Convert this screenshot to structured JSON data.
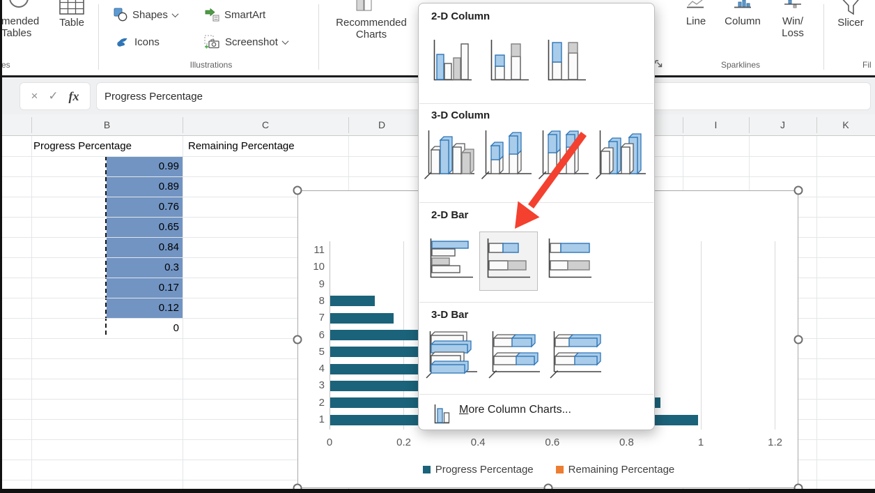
{
  "ribbon": {
    "tables": {
      "recommended_line1": "mended",
      "recommended_line2": "Tables",
      "table": "Table",
      "group_label_truncated": "es"
    },
    "illustrations": {
      "shapes": "Shapes",
      "icons": "Icons",
      "smartart": "SmartArt",
      "screenshot": "Screenshot",
      "group_label": "Illustrations"
    },
    "charts": {
      "recommended_line1": "Recommended",
      "recommended_line2": "Charts"
    },
    "sparklines": {
      "line": "Line",
      "column": "Column",
      "winloss_line1": "Win/",
      "winloss_line2": "Loss",
      "group_label": "Sparklines"
    },
    "filters": {
      "slicer": "Slicer",
      "group_label_truncated": "Fil"
    }
  },
  "formula_bar": {
    "cancel": "×",
    "enter": "✓",
    "fx": "fx",
    "value": "Progress Percentage"
  },
  "sheet": {
    "column_headers_left": [
      "B",
      "C",
      "D"
    ],
    "column_headers_right": [
      "I",
      "J",
      "K"
    ],
    "b1": "Progress Percentage",
    "c1": "Remaining Percentage",
    "b_values": [
      "0.99",
      "0.89",
      "0.76",
      "0.65",
      "0.84",
      "0.3",
      "0.17",
      "0.12",
      "0"
    ],
    "cell_fill_color": "#7194C3"
  },
  "dropdown": {
    "sections": [
      {
        "title": "2-D Column",
        "variants": [
          "clustered-column",
          "stacked-column",
          "100-stacked-column"
        ]
      },
      {
        "title": "3-D Column",
        "variants": [
          "3d-clustered-column",
          "3d-stacked-column",
          "3d-100-stacked-column",
          "3d-column"
        ]
      },
      {
        "title": "2-D Bar",
        "variants": [
          "clustered-bar",
          "stacked-bar",
          "100-stacked-bar"
        ],
        "highlighted_variant": "stacked-bar"
      },
      {
        "title": "3-D Bar",
        "variants": [
          "3d-clustered-bar",
          "3d-stacked-bar",
          "3d-100-stacked-bar"
        ]
      }
    ],
    "more_item": {
      "accesskey": "M",
      "rest": "ore Column Charts..."
    },
    "arrow_color": "#F4402F"
  },
  "chart_data": {
    "type": "bar",
    "orientation": "horizontal",
    "categories": [
      1,
      2,
      3,
      4,
      5,
      6,
      7,
      8,
      9,
      10,
      11
    ],
    "series": [
      {
        "name": "Progress Percentage",
        "color": "#1B637A",
        "values": [
          0.99,
          0.89,
          0.76,
          0.65,
          0.84,
          0.3,
          0.17,
          0.12,
          0,
          null,
          null
        ]
      },
      {
        "name": "Remaining Percentage",
        "color": "#ED7D31",
        "values": [
          null,
          null,
          null,
          null,
          null,
          null,
          null,
          null,
          null,
          null,
          null
        ]
      }
    ],
    "xticks": [
      0,
      0.2,
      0.4,
      0.6,
      0.8,
      1,
      1.2
    ],
    "xlim": [
      0,
      1.2
    ],
    "grid": true,
    "legend_position": "bottom"
  }
}
